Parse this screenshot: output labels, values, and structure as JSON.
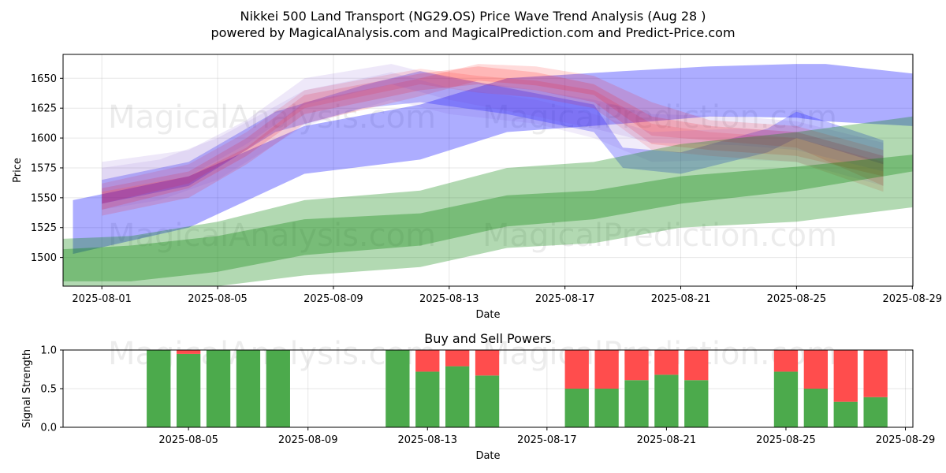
{
  "chart_data": [
    {
      "type": "area",
      "title": "Nikkei 500 Land Transport (NG29.OS) Price Wave Trend Analysis (Aug 28 )",
      "subtitle": "powered by MagicalAnalysis.com and MagicalPrediction.com and Predict-Price.com",
      "xlabel": "Date",
      "ylabel": "Price",
      "ylim": [
        1476,
        1670
      ],
      "xlim": [
        "2025-07-30",
        "2025-08-29"
      ],
      "x_ticks": [
        "2025-08-01",
        "2025-08-05",
        "2025-08-09",
        "2025-08-13",
        "2025-08-17",
        "2025-08-21",
        "2025-08-25",
        "2025-08-29"
      ],
      "y_ticks": [
        1500,
        1525,
        1550,
        1575,
        1600,
        1625,
        1650
      ],
      "grid": true,
      "watermarks": [
        "MagicalAnalysis.com",
        "MagicalPrediction.com",
        "MagicalAnalysis.com",
        "MagicalPrediction.com"
      ],
      "series": [
        {
          "name": "blue-wave-long",
          "color": "#0000ff",
          "opacity": 0.32,
          "x": [
            "2025-07-31",
            "2025-08-04",
            "2025-08-08",
            "2025-08-12",
            "2025-08-15",
            "2025-08-19",
            "2025-08-22",
            "2025-08-25",
            "2025-08-26",
            "2025-08-29"
          ],
          "upper": [
            1548,
            1568,
            1610,
            1628,
            1650,
            1656,
            1660,
            1662,
            1662,
            1654
          ],
          "lower": [
            1503,
            1525,
            1570,
            1582,
            1605,
            1612,
            1618,
            1617,
            1614,
            1610
          ]
        },
        {
          "name": "blue-wave-mid",
          "color": "#0000ff",
          "opacity": 0.25,
          "x": [
            "2025-08-01",
            "2025-08-04",
            "2025-08-07",
            "2025-08-10",
            "2025-08-12",
            "2025-08-15",
            "2025-08-18",
            "2025-08-19",
            "2025-08-21",
            "2025-08-24",
            "2025-08-25",
            "2025-08-28"
          ],
          "upper": [
            1565,
            1580,
            1622,
            1644,
            1656,
            1642,
            1628,
            1592,
            1588,
            1608,
            1622,
            1598
          ],
          "lower": [
            1545,
            1560,
            1605,
            1625,
            1630,
            1620,
            1605,
            1575,
            1570,
            1588,
            1600,
            1578
          ]
        },
        {
          "name": "red-wave-1",
          "color": "#ff0000",
          "opacity": 0.16,
          "x": [
            "2025-08-01",
            "2025-08-04",
            "2025-08-06",
            "2025-08-08",
            "2025-08-12",
            "2025-08-14",
            "2025-08-16",
            "2025-08-18",
            "2025-08-20",
            "2025-08-22",
            "2025-08-25",
            "2025-08-28"
          ],
          "upper": [
            1558,
            1572,
            1600,
            1636,
            1654,
            1660,
            1655,
            1645,
            1618,
            1610,
            1605,
            1585
          ],
          "lower": [
            1540,
            1558,
            1585,
            1620,
            1640,
            1645,
            1640,
            1630,
            1595,
            1590,
            1585,
            1568
          ]
        },
        {
          "name": "red-wave-2",
          "color": "#ff0000",
          "opacity": 0.14,
          "x": [
            "2025-08-01",
            "2025-08-04",
            "2025-08-06",
            "2025-08-08",
            "2025-08-12",
            "2025-08-14",
            "2025-08-16",
            "2025-08-18",
            "2025-08-20",
            "2025-08-22",
            "2025-08-25",
            "2025-08-28"
          ],
          "upper": [
            1555,
            1568,
            1592,
            1630,
            1650,
            1662,
            1660,
            1652,
            1630,
            1615,
            1610,
            1590
          ],
          "lower": [
            1535,
            1550,
            1578,
            1612,
            1635,
            1648,
            1644,
            1636,
            1602,
            1598,
            1592,
            1560
          ]
        },
        {
          "name": "red-wave-3",
          "color": "#ff0000",
          "opacity": 0.12,
          "x": [
            "2025-08-01",
            "2025-08-04",
            "2025-08-06",
            "2025-08-08",
            "2025-08-12",
            "2025-08-14",
            "2025-08-16",
            "2025-08-18",
            "2025-08-20",
            "2025-08-22",
            "2025-08-25",
            "2025-08-28"
          ],
          "upper": [
            1562,
            1578,
            1605,
            1640,
            1658,
            1652,
            1648,
            1640,
            1612,
            1605,
            1600,
            1580
          ],
          "lower": [
            1545,
            1562,
            1590,
            1625,
            1645,
            1638,
            1634,
            1625,
            1590,
            1585,
            1580,
            1555
          ]
        },
        {
          "name": "purple-wave-1",
          "color": "#7744cc",
          "opacity": 0.12,
          "x": [
            "2025-08-01",
            "2025-08-04",
            "2025-08-06",
            "2025-08-08",
            "2025-08-11",
            "2025-08-13",
            "2025-08-16",
            "2025-08-18",
            "2025-08-20",
            "2025-08-23",
            "2025-08-25",
            "2025-08-28"
          ],
          "upper": [
            1580,
            1590,
            1615,
            1650,
            1662,
            1650,
            1640,
            1632,
            1620,
            1618,
            1614,
            1596
          ],
          "lower": [
            1555,
            1568,
            1595,
            1628,
            1645,
            1632,
            1618,
            1608,
            1596,
            1594,
            1590,
            1572
          ]
        },
        {
          "name": "purple-wave-2",
          "color": "#7744cc",
          "opacity": 0.1,
          "x": [
            "2025-08-01",
            "2025-08-03",
            "2025-08-05",
            "2025-08-08",
            "2025-08-11",
            "2025-08-13",
            "2025-08-16",
            "2025-08-18",
            "2025-08-20",
            "2025-08-23",
            "2025-08-25",
            "2025-08-28"
          ],
          "upper": [
            1575,
            1582,
            1600,
            1640,
            1655,
            1642,
            1632,
            1620,
            1605,
            1608,
            1605,
            1585
          ],
          "lower": [
            1540,
            1548,
            1565,
            1610,
            1632,
            1620,
            1612,
            1600,
            1580,
            1582,
            1580,
            1560
          ]
        },
        {
          "name": "green-wave-wide",
          "color": "#008000",
          "opacity": 0.3,
          "x": [
            "2025-07-30",
            "2025-08-02",
            "2025-08-05",
            "2025-08-08",
            "2025-08-12",
            "2025-08-15",
            "2025-08-18",
            "2025-08-21",
            "2025-08-25",
            "2025-08-29"
          ],
          "upper": [
            1515,
            1518,
            1530,
            1548,
            1556,
            1575,
            1580,
            1595,
            1605,
            1618
          ],
          "lower": [
            1476,
            1476,
            1476,
            1485,
            1492,
            1508,
            1512,
            1525,
            1530,
            1542
          ]
        },
        {
          "name": "green-wave-core",
          "color": "#008000",
          "opacity": 0.32,
          "x": [
            "2025-07-30",
            "2025-08-02",
            "2025-08-05",
            "2025-08-08",
            "2025-08-12",
            "2025-08-15",
            "2025-08-18",
            "2025-08-21",
            "2025-08-25",
            "2025-08-29"
          ],
          "upper": [
            1506,
            1510,
            1518,
            1532,
            1537,
            1552,
            1556,
            1568,
            1576,
            1586
          ],
          "lower": [
            1480,
            1480,
            1488,
            1502,
            1510,
            1526,
            1532,
            1545,
            1556,
            1572
          ]
        }
      ]
    },
    {
      "type": "bar",
      "title": "Buy and Sell Powers",
      "xlabel": "Date",
      "ylabel": "Signal Strength",
      "ylim": [
        0,
        1.0
      ],
      "xlim": [
        "2025-08-01",
        "2025-08-29"
      ],
      "x_ticks": [
        "2025-08-05",
        "2025-08-09",
        "2025-08-13",
        "2025-08-17",
        "2025-08-21",
        "2025-08-25",
        "2025-08-29"
      ],
      "y_ticks": [
        0.0,
        0.5,
        1.0
      ],
      "grid": true,
      "categories": [
        "2025-08-04",
        "2025-08-05",
        "2025-08-06",
        "2025-08-07",
        "2025-08-08",
        "2025-08-12",
        "2025-08-13",
        "2025-08-14",
        "2025-08-15",
        "2025-08-18",
        "2025-08-19",
        "2025-08-20",
        "2025-08-21",
        "2025-08-22",
        "2025-08-25",
        "2025-08-26",
        "2025-08-27",
        "2025-08-28"
      ],
      "series": [
        {
          "name": "Buy",
          "color": "#4caa4c",
          "values": [
            1.0,
            0.95,
            1.0,
            1.0,
            1.0,
            1.0,
            0.72,
            0.79,
            0.67,
            0.5,
            0.5,
            0.61,
            0.68,
            0.61,
            0.72,
            0.5,
            0.33,
            0.39
          ]
        },
        {
          "name": "Sell",
          "color": "#ff4d4d",
          "values": [
            0.0,
            0.05,
            0.0,
            0.0,
            0.0,
            0.0,
            0.28,
            0.21,
            0.33,
            0.5,
            0.5,
            0.39,
            0.32,
            0.39,
            0.28,
            0.5,
            0.67,
            0.61
          ]
        }
      ]
    }
  ]
}
